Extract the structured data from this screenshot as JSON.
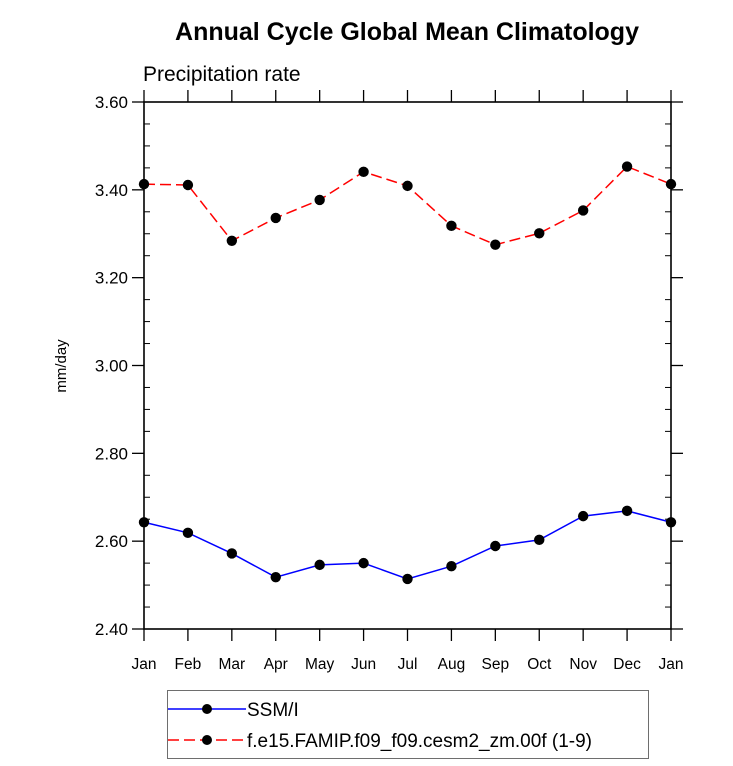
{
  "chart_data": {
    "type": "line",
    "title": "Annual Cycle Global Mean Climatology",
    "subtitle": "Precipitation rate",
    "xlabel": "",
    "ylabel": "mm/day",
    "categories": [
      "Jan",
      "Feb",
      "Mar",
      "Apr",
      "May",
      "Jun",
      "Jul",
      "Aug",
      "Sep",
      "Oct",
      "Nov",
      "Dec",
      "Jan"
    ],
    "ylim": [
      2.4,
      3.6
    ],
    "yticks": [
      "2.40",
      "2.60",
      "2.80",
      "3.00",
      "3.20",
      "3.40",
      "3.60"
    ],
    "ytick_values": [
      2.4,
      2.6,
      2.8,
      3.0,
      3.2,
      3.4,
      3.6
    ],
    "yminor_step": 0.05,
    "grid": false,
    "legend_position": "bottom",
    "series": [
      {
        "name": "SSM/I",
        "color": "#0000ff",
        "line_style": "solid",
        "marker": "filled-circle",
        "values": [
          2.643,
          2.619,
          2.572,
          2.518,
          2.546,
          2.55,
          2.514,
          2.543,
          2.589,
          2.603,
          2.657,
          2.669,
          2.643
        ]
      },
      {
        "name": "f.e15.FAMIP.f09_f09.cesm2_zm.00f (1-9)",
        "color": "#ff0000",
        "line_style": "dashed",
        "marker": "filled-circle",
        "values": [
          3.413,
          3.411,
          3.284,
          3.336,
          3.377,
          3.441,
          3.409,
          3.318,
          3.275,
          3.301,
          3.353,
          3.453,
          3.413
        ]
      }
    ]
  }
}
